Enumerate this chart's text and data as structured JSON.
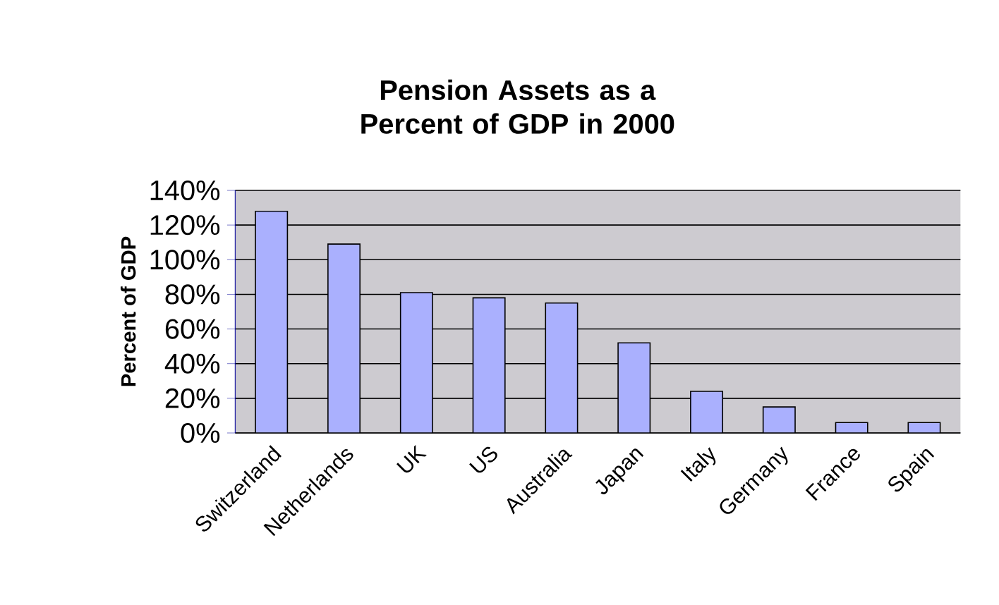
{
  "chart_data": {
    "type": "bar",
    "title": "Pension Assets as a Percent of GDP in 2000",
    "ylabel": "Percent of GDP",
    "categories": [
      "Switzerland",
      "Netherlands",
      "UK",
      "US",
      "Australia",
      "Japan",
      "Italy",
      "Germany",
      "France",
      "Spain"
    ],
    "values": [
      128,
      109,
      81,
      78,
      75,
      52,
      24,
      15,
      6,
      6
    ],
    "color": "#aab0fe",
    "ylim": [
      0,
      140
    ],
    "yticks": [
      {
        "value": 0,
        "label": "0%"
      },
      {
        "value": 20,
        "label": "20%"
      },
      {
        "value": 40,
        "label": "40%"
      },
      {
        "value": 60,
        "label": "60%"
      },
      {
        "value": 80,
        "label": "80%"
      },
      {
        "value": 100,
        "label": "100%"
      },
      {
        "value": 120,
        "label": "120%"
      },
      {
        "value": 140,
        "label": "140%"
      }
    ],
    "grid": "y"
  }
}
